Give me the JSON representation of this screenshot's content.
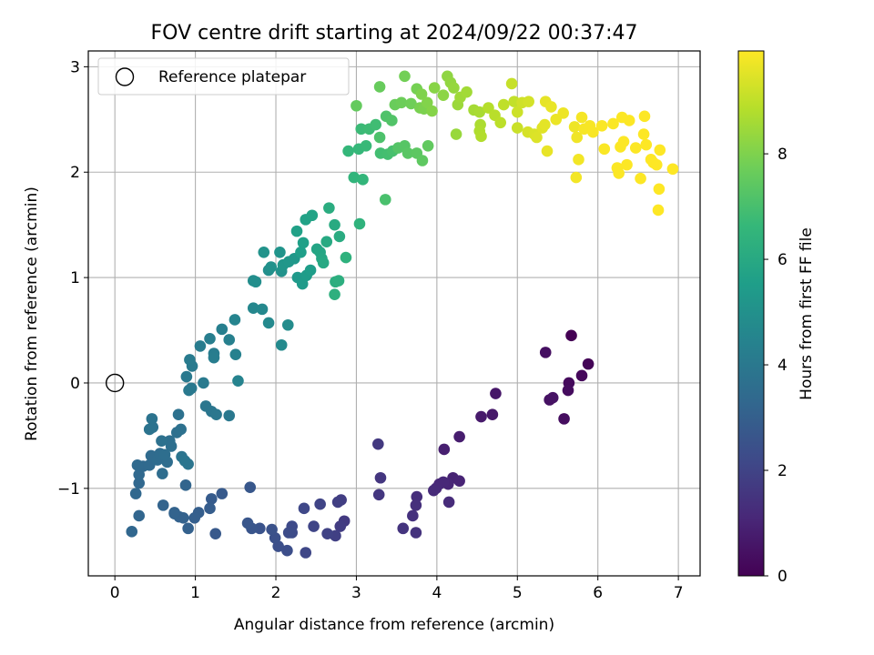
{
  "chart_data": {
    "type": "scatter",
    "title": "FOV centre drift starting at 2024/09/22 00:37:47",
    "xlabel": "Angular distance from reference (arcmin)",
    "ylabel": "Rotation from reference (arcmin)",
    "xlim": [
      -0.33,
      7.27
    ],
    "ylim": [
      -1.83,
      3.15
    ],
    "xticks": [
      0,
      1,
      2,
      3,
      4,
      5,
      6,
      7
    ],
    "yticks": [
      -1,
      0,
      1,
      2,
      3
    ],
    "grid": true,
    "legend": {
      "position": "top-left",
      "entries": [
        "Reference platepar"
      ]
    },
    "reference_point": {
      "x": 0,
      "y": 0
    },
    "colorbar": {
      "label": "Hours from first FF file",
      "colormap": "viridis",
      "range": [
        0,
        9.95
      ],
      "ticks": [
        0,
        2,
        4,
        6,
        8
      ]
    },
    "points": [
      [
        5.67,
        0.45,
        0.0
      ],
      [
        5.88,
        0.18,
        0.1
      ],
      [
        5.8,
        0.07,
        0.2
      ],
      [
        5.64,
        0.0,
        0.25
      ],
      [
        5.63,
        -0.07,
        0.3
      ],
      [
        5.58,
        -0.34,
        0.35
      ],
      [
        5.35,
        0.29,
        0.4
      ],
      [
        5.4,
        -0.16,
        0.45
      ],
      [
        5.44,
        -0.14,
        0.5
      ],
      [
        4.73,
        -0.1,
        0.6
      ],
      [
        4.69,
        -0.3,
        0.65
      ],
      [
        4.55,
        -0.32,
        0.7
      ],
      [
        4.28,
        -0.51,
        0.8
      ],
      [
        4.09,
        -0.63,
        0.85
      ],
      [
        4.2,
        -0.9,
        0.95
      ],
      [
        4.28,
        -0.93,
        1.0
      ],
      [
        4.14,
        -0.96,
        1.05
      ],
      [
        4.08,
        -0.94,
        1.1
      ],
      [
        4.03,
        -0.96,
        1.12
      ],
      [
        3.99,
        -1.0,
        1.15
      ],
      [
        3.96,
        -1.02,
        1.2
      ],
      [
        4.15,
        -1.13,
        1.25
      ],
      [
        3.75,
        -1.08,
        1.3
      ],
      [
        3.74,
        -1.16,
        1.35
      ],
      [
        3.7,
        -1.26,
        1.4
      ],
      [
        3.74,
        -1.42,
        1.45
      ],
      [
        3.58,
        -1.38,
        1.5
      ],
      [
        3.3,
        -0.9,
        1.55
      ],
      [
        3.28,
        -1.06,
        1.6
      ],
      [
        3.27,
        -0.58,
        1.65
      ],
      [
        2.85,
        -1.31,
        1.7
      ],
      [
        2.8,
        -1.36,
        1.75
      ],
      [
        2.81,
        -1.11,
        1.8
      ],
      [
        2.77,
        -1.13,
        1.85
      ],
      [
        2.74,
        -1.45,
        1.9
      ],
      [
        2.64,
        -1.43,
        1.95
      ],
      [
        2.55,
        -1.15,
        2.0
      ],
      [
        2.47,
        -1.36,
        2.05
      ],
      [
        2.37,
        -1.61,
        2.1
      ],
      [
        2.35,
        -1.19,
        2.15
      ],
      [
        2.2,
        -1.36,
        2.2
      ],
      [
        2.2,
        -1.42,
        2.25
      ],
      [
        2.16,
        -1.42,
        2.3
      ],
      [
        2.14,
        -1.59,
        2.35
      ],
      [
        2.03,
        -1.55,
        2.4
      ],
      [
        1.99,
        -1.47,
        2.45
      ],
      [
        1.95,
        -1.39,
        2.5
      ],
      [
        1.8,
        -1.38,
        2.55
      ],
      [
        1.7,
        -1.38,
        2.6
      ],
      [
        1.65,
        -1.33,
        2.65
      ],
      [
        1.68,
        -0.99,
        2.7
      ],
      [
        1.25,
        -1.43,
        2.75
      ],
      [
        1.33,
        -1.05,
        2.8
      ],
      [
        1.2,
        -1.1,
        2.85
      ],
      [
        1.18,
        -1.19,
        2.9
      ],
      [
        1.04,
        -1.23,
        2.95
      ],
      [
        0.99,
        -1.28,
        3.0
      ],
      [
        0.91,
        -1.38,
        3.05
      ],
      [
        0.85,
        -1.28,
        3.08
      ],
      [
        0.8,
        -1.27,
        3.1
      ],
      [
        0.74,
        -1.24,
        3.12
      ],
      [
        0.74,
        -1.23,
        3.15
      ],
      [
        0.6,
        -1.16,
        3.18
      ],
      [
        0.88,
        -0.97,
        3.2
      ],
      [
        0.3,
        -1.26,
        3.25
      ],
      [
        0.21,
        -1.41,
        3.28
      ],
      [
        0.26,
        -1.05,
        3.3
      ],
      [
        0.3,
        -0.95,
        3.32
      ],
      [
        0.3,
        -0.87,
        3.35
      ],
      [
        0.35,
        -0.79,
        3.38
      ],
      [
        0.28,
        -0.78,
        3.4
      ],
      [
        0.43,
        -0.78,
        3.42
      ],
      [
        0.45,
        -0.69,
        3.45
      ],
      [
        0.53,
        -0.73,
        3.48
      ],
      [
        0.56,
        -0.67,
        3.5
      ],
      [
        0.59,
        -0.86,
        3.52
      ],
      [
        0.65,
        -0.75,
        3.55
      ],
      [
        0.62,
        -0.68,
        3.58
      ],
      [
        0.7,
        -0.6,
        3.6
      ],
      [
        0.68,
        -0.55,
        3.62
      ],
      [
        0.77,
        -0.47,
        3.65
      ],
      [
        0.82,
        -0.44,
        3.68
      ],
      [
        0.79,
        -0.3,
        3.7
      ],
      [
        0.58,
        -0.55,
        3.72
      ],
      [
        0.47,
        -0.42,
        3.75
      ],
      [
        0.43,
        -0.44,
        3.78
      ],
      [
        0.46,
        -0.34,
        3.8
      ],
      [
        0.83,
        -0.7,
        3.82
      ],
      [
        0.91,
        -0.77,
        3.85
      ],
      [
        0.87,
        -0.74,
        3.88
      ],
      [
        1.13,
        -0.22,
        3.9
      ],
      [
        1.2,
        -0.27,
        3.92
      ],
      [
        1.26,
        -0.3,
        3.95
      ],
      [
        1.42,
        -0.31,
        3.98
      ],
      [
        0.95,
        -0.05,
        4.0
      ],
      [
        0.92,
        -0.07,
        4.02
      ],
      [
        0.89,
        0.06,
        4.05
      ],
      [
        1.1,
        0.0,
        4.08
      ],
      [
        0.96,
        0.16,
        4.1
      ],
      [
        0.93,
        0.22,
        4.12
      ],
      [
        1.06,
        0.35,
        4.15
      ],
      [
        1.23,
        0.28,
        4.18
      ],
      [
        1.23,
        0.24,
        4.2
      ],
      [
        1.18,
        0.42,
        4.25
      ],
      [
        1.33,
        0.51,
        4.3
      ],
      [
        1.42,
        0.41,
        4.35
      ],
      [
        1.5,
        0.27,
        4.4
      ],
      [
        1.53,
        0.02,
        4.45
      ],
      [
        1.49,
        0.6,
        4.5
      ],
      [
        1.72,
        0.71,
        4.6
      ],
      [
        1.83,
        0.7,
        4.65
      ],
      [
        1.91,
        0.57,
        4.7
      ],
      [
        2.07,
        0.36,
        4.75
      ],
      [
        2.15,
        0.55,
        4.8
      ],
      [
        1.72,
        0.97,
        4.85
      ],
      [
        1.75,
        0.96,
        4.9
      ],
      [
        1.91,
        1.07,
        4.95
      ],
      [
        1.94,
        1.1,
        5.0
      ],
      [
        2.07,
        1.06,
        5.05
      ],
      [
        1.85,
        1.24,
        5.1
      ],
      [
        2.05,
        1.24,
        5.15
      ],
      [
        2.09,
        1.12,
        5.2
      ],
      [
        2.16,
        1.15,
        5.25
      ],
      [
        2.23,
        1.18,
        5.3
      ],
      [
        2.27,
        1.0,
        5.35
      ],
      [
        2.33,
        0.94,
        5.4
      ],
      [
        2.38,
        1.02,
        5.45
      ],
      [
        2.43,
        1.07,
        5.5
      ],
      [
        2.31,
        1.24,
        5.55
      ],
      [
        2.34,
        1.33,
        5.6
      ],
      [
        2.26,
        1.44,
        5.65
      ],
      [
        2.37,
        1.55,
        5.7
      ],
      [
        2.45,
        1.59,
        5.75
      ],
      [
        2.51,
        1.27,
        5.8
      ],
      [
        2.55,
        1.24,
        5.85
      ],
      [
        2.57,
        1.18,
        5.9
      ],
      [
        2.59,
        1.14,
        5.95
      ],
      [
        2.63,
        1.34,
        6.0
      ],
      [
        2.73,
        1.5,
        6.05
      ],
      [
        2.79,
        1.39,
        6.1
      ],
      [
        2.66,
        1.66,
        6.15
      ],
      [
        2.74,
        0.96,
        6.2
      ],
      [
        2.78,
        0.97,
        6.25
      ],
      [
        2.73,
        0.84,
        6.3
      ],
      [
        2.87,
        1.19,
        6.35
      ],
      [
        3.04,
        1.51,
        6.4
      ],
      [
        2.97,
        1.95,
        6.5
      ],
      [
        3.08,
        1.93,
        6.55
      ],
      [
        2.9,
        2.2,
        6.6
      ],
      [
        3.03,
        2.22,
        6.65
      ],
      [
        3.12,
        2.25,
        6.7
      ],
      [
        3.06,
        2.41,
        6.75
      ],
      [
        3.16,
        2.41,
        6.8
      ],
      [
        3.24,
        2.45,
        6.85
      ],
      [
        3.3,
        2.18,
        6.9
      ],
      [
        3.39,
        2.17,
        6.95
      ],
      [
        3.45,
        2.2,
        7.0
      ],
      [
        3.36,
        1.74,
        7.05
      ],
      [
        3.29,
        2.33,
        7.1
      ],
      [
        3.37,
        2.53,
        7.15
      ],
      [
        3.44,
        2.49,
        7.2
      ],
      [
        3.52,
        2.23,
        7.25
      ],
      [
        3.6,
        2.25,
        7.3
      ],
      [
        3.64,
        2.18,
        7.35
      ],
      [
        3.75,
        2.18,
        7.4
      ],
      [
        3.82,
        2.11,
        7.45
      ],
      [
        3.89,
        2.25,
        7.5
      ],
      [
        3.0,
        2.63,
        7.55
      ],
      [
        3.29,
        2.81,
        7.6
      ],
      [
        3.48,
        2.64,
        7.65
      ],
      [
        3.56,
        2.66,
        7.7
      ],
      [
        3.68,
        2.65,
        7.75
      ],
      [
        3.6,
        2.91,
        7.8
      ],
      [
        3.75,
        2.79,
        7.85
      ],
      [
        3.79,
        2.61,
        7.9
      ],
      [
        3.84,
        2.6,
        7.95
      ],
      [
        3.81,
        2.74,
        8.0
      ],
      [
        3.88,
        2.66,
        8.05
      ],
      [
        3.94,
        2.58,
        8.1
      ],
      [
        3.97,
        2.8,
        8.15
      ],
      [
        4.08,
        2.73,
        8.2
      ],
      [
        4.13,
        2.91,
        8.25
      ],
      [
        4.17,
        2.85,
        8.3
      ],
      [
        4.21,
        2.8,
        8.35
      ],
      [
        4.24,
        2.36,
        8.4
      ],
      [
        4.26,
        2.64,
        8.45
      ],
      [
        4.29,
        2.71,
        8.5
      ],
      [
        4.37,
        2.76,
        8.55
      ],
      [
        4.46,
        2.59,
        8.6
      ],
      [
        4.53,
        2.57,
        8.65
      ],
      [
        4.54,
        2.45,
        8.7
      ],
      [
        4.53,
        2.39,
        8.75
      ],
      [
        4.55,
        2.34,
        8.8
      ],
      [
        4.64,
        2.61,
        8.85
      ],
      [
        4.72,
        2.54,
        8.9
      ],
      [
        4.79,
        2.47,
        8.95
      ],
      [
        4.83,
        2.64,
        9.0
      ],
      [
        4.96,
        2.67,
        9.05
      ],
      [
        4.93,
        2.84,
        9.1
      ],
      [
        5.0,
        2.42,
        9.15
      ],
      [
        5.0,
        2.57,
        9.2
      ],
      [
        5.06,
        2.66,
        9.25
      ],
      [
        5.14,
        2.67,
        9.3
      ],
      [
        5.13,
        2.38,
        9.35
      ],
      [
        5.21,
        2.36,
        9.4
      ],
      [
        5.24,
        2.33,
        9.45
      ],
      [
        5.31,
        2.42,
        9.5
      ],
      [
        5.34,
        2.45,
        9.55
      ],
      [
        5.35,
        2.67,
        9.6
      ],
      [
        5.37,
        2.2,
        9.62
      ],
      [
        5.42,
        2.62,
        9.65
      ],
      [
        5.48,
        2.5,
        9.68
      ],
      [
        5.57,
        2.56,
        9.7
      ],
      [
        5.71,
        2.43,
        9.72
      ],
      [
        5.74,
        2.33,
        9.75
      ],
      [
        5.76,
        2.12,
        9.78
      ],
      [
        5.73,
        1.95,
        9.8
      ],
      [
        5.8,
        2.52,
        9.82
      ],
      [
        5.83,
        2.41,
        9.84
      ],
      [
        5.9,
        2.44,
        9.86
      ],
      [
        5.94,
        2.38,
        9.88
      ],
      [
        6.05,
        2.44,
        9.9
      ],
      [
        6.08,
        2.22,
        9.9
      ],
      [
        6.19,
        2.46,
        9.9
      ],
      [
        6.24,
        2.04,
        9.92
      ],
      [
        6.26,
        1.99,
        9.92
      ],
      [
        6.28,
        2.24,
        9.92
      ],
      [
        6.3,
        2.52,
        9.93
      ],
      [
        6.32,
        2.29,
        9.93
      ],
      [
        6.36,
        2.07,
        9.93
      ],
      [
        6.39,
        2.49,
        9.94
      ],
      [
        6.47,
        2.23,
        9.94
      ],
      [
        6.53,
        1.94,
        9.94
      ],
      [
        6.57,
        2.36,
        9.94
      ],
      [
        6.58,
        2.53,
        9.94
      ],
      [
        6.6,
        2.26,
        9.95
      ],
      [
        6.66,
        2.12,
        9.95
      ],
      [
        6.69,
        2.09,
        9.95
      ],
      [
        6.73,
        2.07,
        9.95
      ],
      [
        6.76,
        1.84,
        9.95
      ],
      [
        6.77,
        2.21,
        9.95
      ],
      [
        6.75,
        1.64,
        9.95
      ],
      [
        6.93,
        2.03,
        9.95
      ]
    ]
  }
}
